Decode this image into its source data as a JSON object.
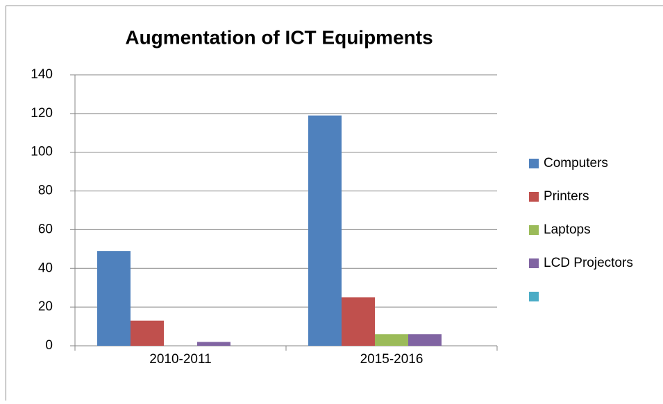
{
  "chart_data": {
    "type": "bar",
    "title": "Augmentation of ICT Equipments",
    "categories": [
      "2010-2011",
      "2015-2016"
    ],
    "series": [
      {
        "name": "Computers",
        "color": "#4f81bd",
        "values": [
          49,
          119
        ]
      },
      {
        "name": "Printers",
        "color": "#c0504d",
        "values": [
          13,
          25
        ]
      },
      {
        "name": "Laptops",
        "color": "#9bbb59",
        "values": [
          0,
          6
        ]
      },
      {
        "name": "LCD Projectors",
        "color": "#8064a2",
        "values": [
          2,
          6
        ]
      },
      {
        "name": null,
        "color": "#4bacc6",
        "values": [
          null,
          null
        ]
      }
    ],
    "ylim": [
      0,
      140
    ],
    "yticks": [
      0,
      20,
      40,
      60,
      80,
      100,
      120,
      140
    ],
    "grid": true,
    "legend": "right"
  }
}
